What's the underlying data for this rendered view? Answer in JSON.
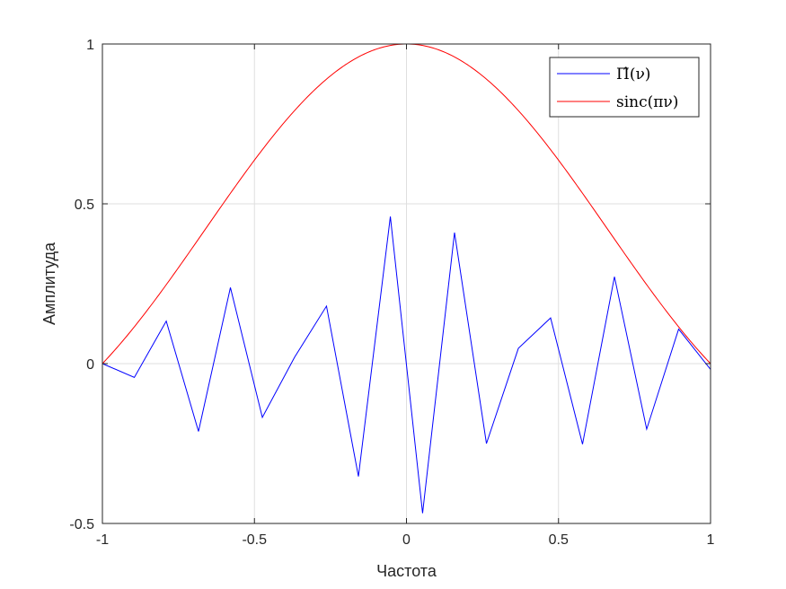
{
  "chart_data": {
    "type": "line",
    "xlabel": "Частота",
    "ylabel": "Амплитуда",
    "xlim": [
      -1,
      1
    ],
    "ylim": [
      -0.5,
      1
    ],
    "xticks": [
      -1,
      -0.5,
      0,
      0.5,
      1
    ],
    "xtick_labels": [
      "-1",
      "-0.5",
      "0",
      "0.5",
      "1"
    ],
    "yticks": [
      -0.5,
      0,
      0.5,
      1
    ],
    "ytick_labels": [
      "-0.5",
      "0",
      "0.5",
      "1"
    ],
    "grid": true,
    "legend_position": "top-right",
    "series": [
      {
        "name": "Π̂(ν)",
        "color": "#0000ff",
        "x": [
          -1.0,
          -0.895,
          -0.79,
          -0.684,
          -0.579,
          -0.474,
          -0.368,
          -0.263,
          -0.158,
          -0.053,
          0.053,
          0.158,
          0.263,
          0.368,
          0.474,
          0.579,
          0.684,
          0.79,
          0.895,
          1.0
        ],
        "y": [
          0.0,
          -0.043,
          0.133,
          -0.212,
          0.238,
          -0.168,
          0.02,
          0.18,
          -0.353,
          0.46,
          -0.468,
          0.41,
          -0.25,
          0.048,
          0.143,
          -0.252,
          0.272,
          -0.205,
          0.108,
          -0.018
        ]
      },
      {
        "name": "sinc(πν)",
        "color": "#ff0000",
        "function": "sinc",
        "x_range": [
          -1,
          1
        ]
      }
    ]
  }
}
